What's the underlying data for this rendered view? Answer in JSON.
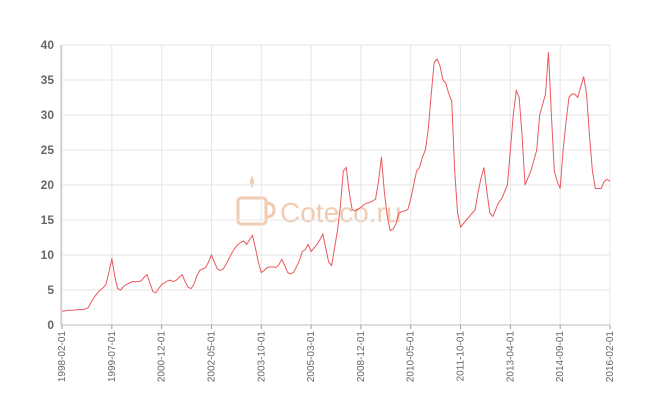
{
  "chart_data": {
    "type": "line",
    "watermark": "Coteco.ru",
    "color": "#e8474c",
    "ylim": [
      0,
      40
    ],
    "yticks": [
      0,
      5,
      10,
      15,
      20,
      25,
      30,
      35,
      40
    ],
    "grid": true,
    "categories": [
      "1998-02-01",
      null,
      null,
      null,
      null,
      null,
      null,
      null,
      null,
      null,
      null,
      null,
      null,
      null,
      null,
      null,
      null,
      "1999-07-01",
      null,
      null,
      null,
      null,
      null,
      null,
      null,
      null,
      null,
      null,
      null,
      null,
      null,
      null,
      null,
      null,
      "2000-12-01",
      null,
      null,
      null,
      null,
      null,
      null,
      null,
      null,
      null,
      null,
      null,
      null,
      null,
      null,
      null,
      null,
      "2002-05-01",
      null,
      null,
      null,
      null,
      null,
      null,
      null,
      null,
      null,
      null,
      null,
      null,
      null,
      null,
      null,
      null,
      "2003-10-01",
      null,
      null,
      null,
      null,
      null,
      null,
      null,
      null,
      null,
      null,
      null,
      null,
      null,
      null,
      null,
      null,
      "2005-03-01",
      null,
      null,
      null,
      null,
      null,
      null,
      null,
      null,
      null,
      null,
      null,
      null,
      null,
      null,
      null,
      null,
      "2008-12-01",
      null,
      null,
      null,
      null,
      null,
      null,
      null,
      null,
      null,
      null,
      null,
      null,
      null,
      null,
      null,
      null,
      "2010-05-01",
      null,
      null,
      null,
      null,
      null,
      null,
      null,
      null,
      null,
      null,
      null,
      null,
      null,
      null,
      null,
      null,
      "2011-10-01",
      null,
      null,
      null,
      null,
      null,
      null,
      null,
      null,
      null,
      null,
      null,
      null,
      null,
      null,
      null,
      null,
      "2013-04-01",
      null,
      null,
      null,
      null,
      null,
      null,
      null,
      null,
      null,
      null,
      null,
      null,
      null,
      null,
      null,
      null,
      "2014-09-01",
      null,
      null,
      null,
      null,
      null,
      null,
      null,
      null,
      null,
      null,
      null,
      null,
      null,
      null,
      null,
      null,
      "2016-02-01"
    ],
    "values": [
      2.0,
      2.0,
      2.1,
      2.1,
      2.1,
      2.2,
      2.2,
      2.2,
      2.3,
      2.5,
      3.3,
      4.0,
      4.5,
      5.0,
      5.3,
      5.8,
      7.5,
      9.5,
      7.0,
      5.2,
      5.0,
      5.5,
      5.8,
      6.0,
      6.2,
      6.2,
      6.2,
      6.3,
      6.8,
      7.2,
      6.0,
      4.8,
      4.6,
      5.2,
      5.8,
      6.0,
      6.3,
      6.4,
      6.2,
      6.4,
      6.8,
      7.2,
      6.2,
      5.4,
      5.2,
      5.8,
      7.0,
      7.8,
      8.0,
      8.2,
      9.0,
      10,
      9,
      8,
      7.8,
      8.0,
      8.7,
      9.5,
      10.3,
      11,
      11.5,
      11.8,
      12,
      11.5,
      12.2,
      12.8,
      11,
      9,
      7.5,
      7.8,
      8.2,
      8.3,
      8.3,
      8.2,
      8.6,
      9.4,
      8.5,
      7.5,
      7.3,
      7.5,
      8.3,
      9.2,
      10.5,
      10.8,
      11.5,
      10.5,
      11,
      11.5,
      12.2,
      13,
      11,
      9,
      8.5,
      11,
      13.5,
      17,
      22,
      22.5,
      19,
      16.5,
      16.3,
      16.5,
      16.8,
      17.2,
      17.4,
      17.5,
      17.7,
      18,
      20.5,
      24,
      19,
      15.5,
      13.5,
      13.7,
      14.5,
      16,
      16.2,
      16.3,
      16.5,
      18,
      20,
      22,
      22.5,
      24,
      25,
      28,
      33,
      37.5,
      38,
      37,
      35,
      34.5,
      33,
      32,
      22,
      16,
      14,
      14.5,
      15,
      15.5,
      16,
      16.5,
      19,
      21,
      22.5,
      19,
      16,
      15.5,
      16.5,
      17.5,
      18,
      19,
      20,
      25,
      30,
      33.5,
      32.5,
      27,
      20,
      21,
      22,
      23.5,
      25,
      30,
      31.5,
      33,
      39,
      30,
      22,
      20.5,
      19.5,
      25,
      29,
      32.5,
      33,
      33,
      32.5,
      34,
      35.5,
      33,
      27,
      22,
      19.5,
      19.5,
      19.5,
      20.5,
      20.8,
      20.5
    ]
  }
}
